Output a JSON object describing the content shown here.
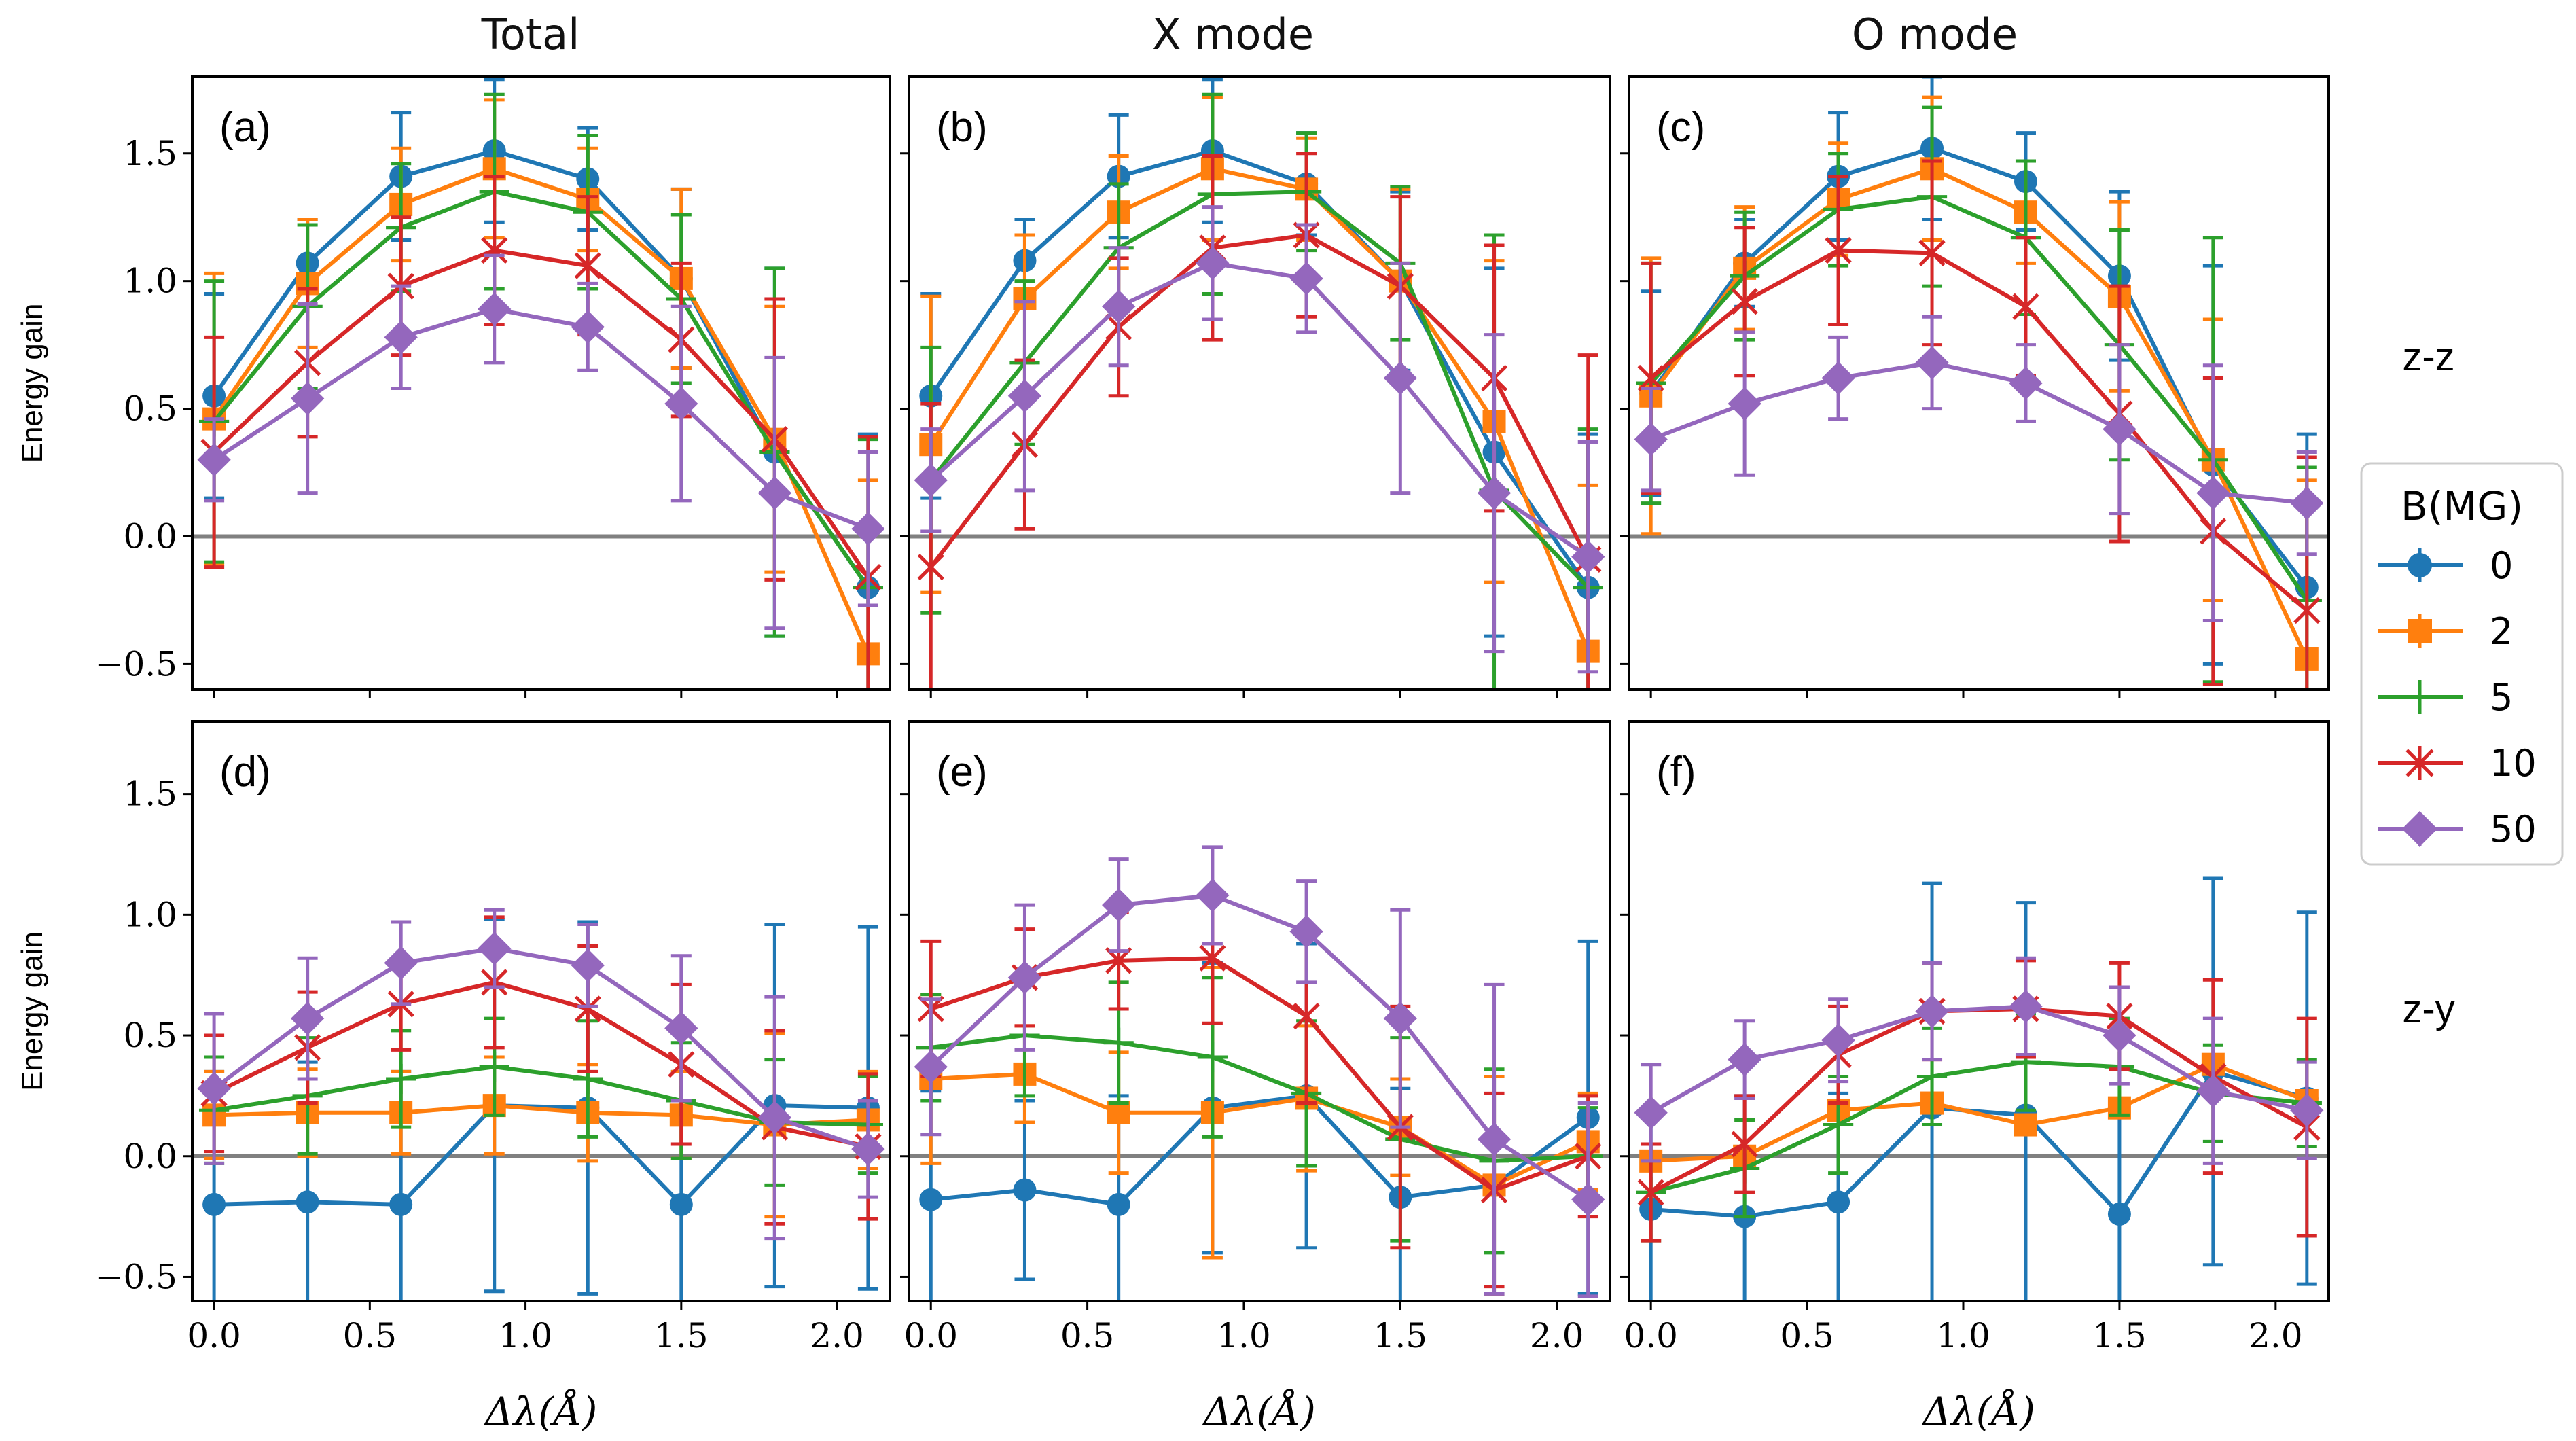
{
  "column_titles": [
    "Total",
    "X mode",
    "O mode"
  ],
  "row_labels": [
    "z-z",
    "z-y"
  ],
  "colors": {
    "B0": "#1f77b4",
    "B2": "#ff7f0e",
    "B5": "#2ca02c",
    "B10": "#d62728",
    "B50": "#9467bd",
    "zero_line": "#808080"
  },
  "legend": {
    "title": "B(MG)",
    "entries": [
      {
        "label": "0",
        "marker": "circle",
        "color": "#1f77b4"
      },
      {
        "label": "2",
        "marker": "square",
        "color": "#ff7f0e"
      },
      {
        "label": "5",
        "marker": "plus",
        "color": "#2ca02c"
      },
      {
        "label": "10",
        "marker": "x",
        "color": "#d62728"
      },
      {
        "label": "50",
        "marker": "diamond",
        "color": "#9467bd"
      }
    ]
  },
  "chart_data": [
    {
      "panel": "(a)",
      "type": "line",
      "title": "Total",
      "xlabel": "Δλ(Å)",
      "ylabel": "Energy gain",
      "xlim": [
        -0.07,
        2.17
      ],
      "ylim": [
        -0.6,
        1.8
      ],
      "x": [
        0.0,
        0.3,
        0.6,
        0.9,
        1.2,
        1.5,
        1.8,
        2.1
      ],
      "series": [
        {
          "name": "0",
          "values": [
            0.55,
            1.07,
            1.41,
            1.51,
            1.4,
            1.01,
            0.33,
            -0.2
          ],
          "errors": [
            0.4,
            0.17,
            0.25,
            0.28,
            0.2,
            0.35,
            0.72,
            0.6
          ]
        },
        {
          "name": "2",
          "values": [
            0.46,
            0.99,
            1.3,
            1.44,
            1.32,
            1.01,
            0.38,
            -0.46
          ],
          "errors": [
            0.57,
            0.25,
            0.22,
            0.27,
            0.2,
            0.35,
            0.52,
            0.68
          ]
        },
        {
          "name": "5",
          "values": [
            0.45,
            0.9,
            1.21,
            1.35,
            1.27,
            0.93,
            0.33,
            -0.2
          ],
          "errors": [
            0.55,
            0.32,
            0.25,
            0.38,
            0.3,
            0.33,
            0.72,
            0.58
          ]
        },
        {
          "name": "10",
          "values": [
            0.33,
            0.68,
            0.98,
            1.12,
            1.06,
            0.77,
            0.38,
            -0.16
          ],
          "errors": [
            0.45,
            0.29,
            0.27,
            0.29,
            0.27,
            0.3,
            0.55,
            0.55
          ]
        },
        {
          "name": "50",
          "values": [
            0.3,
            0.54,
            0.78,
            0.89,
            0.82,
            0.52,
            0.17,
            0.03
          ],
          "errors": [
            0.16,
            0.37,
            0.2,
            0.21,
            0.17,
            0.38,
            0.53,
            0.3
          ]
        }
      ]
    },
    {
      "panel": "(b)",
      "type": "line",
      "title": "X mode",
      "xlabel": "Δλ(Å)",
      "ylabel": "",
      "xlim": [
        -0.07,
        2.17
      ],
      "ylim": [
        -0.6,
        1.8
      ],
      "x": [
        0.0,
        0.3,
        0.6,
        0.9,
        1.2,
        1.5,
        1.8,
        2.1
      ],
      "series": [
        {
          "name": "0",
          "values": [
            0.55,
            1.08,
            1.41,
            1.51,
            1.38,
            1.0,
            0.33,
            -0.2
          ],
          "errors": [
            0.4,
            0.16,
            0.24,
            0.28,
            0.2,
            0.35,
            0.72,
            0.6
          ]
        },
        {
          "name": "2",
          "values": [
            0.36,
            0.93,
            1.27,
            1.44,
            1.36,
            1.0,
            0.45,
            -0.45
          ],
          "errors": [
            0.58,
            0.25,
            0.22,
            0.28,
            0.2,
            0.36,
            0.63,
            0.65
          ]
        },
        {
          "name": "5",
          "values": [
            0.22,
            0.68,
            1.13,
            1.34,
            1.35,
            1.07,
            0.18,
            -0.2
          ],
          "errors": [
            0.52,
            0.32,
            0.25,
            0.39,
            0.23,
            0.3,
            1.0,
            0.62
          ]
        },
        {
          "name": "10",
          "values": [
            -0.12,
            0.36,
            0.82,
            1.13,
            1.18,
            0.98,
            0.62,
            -0.09
          ],
          "errors": [
            0.64,
            0.33,
            0.27,
            0.36,
            0.32,
            0.35,
            0.52,
            0.8
          ]
        },
        {
          "name": "50",
          "values": [
            0.22,
            0.55,
            0.9,
            1.07,
            1.01,
            0.62,
            0.17,
            -0.08
          ],
          "errors": [
            0.2,
            0.37,
            0.23,
            0.22,
            0.21,
            0.45,
            0.62,
            0.45
          ]
        }
      ]
    },
    {
      "panel": "(c)",
      "type": "line",
      "title": "O mode",
      "xlabel": "Δλ(Å)",
      "ylabel": "",
      "xlim": [
        -0.07,
        2.17
      ],
      "ylim": [
        -0.6,
        1.8
      ],
      "x": [
        0.0,
        0.3,
        0.6,
        0.9,
        1.2,
        1.5,
        1.8,
        2.1
      ],
      "series": [
        {
          "name": "0",
          "values": [
            0.56,
            1.07,
            1.41,
            1.52,
            1.39,
            1.02,
            0.28,
            -0.2
          ],
          "errors": [
            0.4,
            0.17,
            0.25,
            0.28,
            0.19,
            0.33,
            0.78,
            0.6
          ]
        },
        {
          "name": "2",
          "values": [
            0.55,
            1.05,
            1.32,
            1.44,
            1.27,
            0.94,
            0.3,
            -0.48
          ],
          "errors": [
            0.54,
            0.24,
            0.22,
            0.28,
            0.2,
            0.37,
            0.55,
            0.7
          ]
        },
        {
          "name": "5",
          "values": [
            0.6,
            1.02,
            1.28,
            1.33,
            1.17,
            0.75,
            0.3,
            -0.25
          ],
          "errors": [
            0.47,
            0.25,
            0.22,
            0.35,
            0.3,
            0.45,
            0.87,
            0.52
          ]
        },
        {
          "name": "10",
          "values": [
            0.62,
            0.92,
            1.12,
            1.11,
            0.9,
            0.48,
            0.02,
            -0.29
          ],
          "errors": [
            0.45,
            0.29,
            0.29,
            0.36,
            0.27,
            0.5,
            0.6,
            0.6
          ]
        },
        {
          "name": "50",
          "values": [
            0.38,
            0.52,
            0.62,
            0.68,
            0.6,
            0.42,
            0.17,
            0.13
          ],
          "errors": [
            0.2,
            0.28,
            0.16,
            0.18,
            0.15,
            0.33,
            0.5,
            0.2
          ]
        }
      ]
    },
    {
      "panel": "(d)",
      "type": "line",
      "title": "",
      "xlabel": "Δλ(Å)",
      "ylabel": "Energy gain",
      "xlim": [
        -0.07,
        2.17
      ],
      "ylim": [
        -0.6,
        1.8
      ],
      "x": [
        0.0,
        0.3,
        0.6,
        0.9,
        1.2,
        1.5,
        1.8,
        2.1
      ],
      "series": [
        {
          "name": "0",
          "values": [
            -0.2,
            -0.19,
            -0.2,
            0.21,
            0.2,
            -0.2,
            0.21,
            0.2
          ],
          "errors": [
            0.55,
            0.58,
            0.55,
            0.77,
            0.77,
            0.55,
            0.75,
            0.75
          ]
        },
        {
          "name": "2",
          "values": [
            0.17,
            0.18,
            0.18,
            0.21,
            0.18,
            0.17,
            0.13,
            0.15
          ],
          "errors": [
            0.18,
            0.18,
            0.17,
            0.2,
            0.2,
            0.18,
            0.38,
            0.2
          ]
        },
        {
          "name": "5",
          "values": [
            0.19,
            0.25,
            0.32,
            0.37,
            0.32,
            0.23,
            0.14,
            0.13
          ],
          "errors": [
            0.22,
            0.24,
            0.2,
            0.2,
            0.24,
            0.24,
            0.26,
            0.2
          ]
        },
        {
          "name": "10",
          "values": [
            0.26,
            0.45,
            0.63,
            0.72,
            0.61,
            0.38,
            0.12,
            0.04
          ],
          "errors": [
            0.24,
            0.23,
            0.19,
            0.27,
            0.26,
            0.33,
            0.4,
            0.3
          ]
        },
        {
          "name": "50",
          "values": [
            0.28,
            0.57,
            0.8,
            0.86,
            0.79,
            0.53,
            0.16,
            0.03
          ],
          "errors": [
            0.31,
            0.25,
            0.17,
            0.16,
            0.17,
            0.3,
            0.5,
            0.2
          ]
        }
      ]
    },
    {
      "panel": "(e)",
      "type": "line",
      "title": "",
      "xlabel": "Δλ(Å)",
      "ylabel": "",
      "xlim": [
        -0.07,
        2.17
      ],
      "ylim": [
        -0.6,
        1.8
      ],
      "x": [
        0.0,
        0.3,
        0.6,
        0.9,
        1.2,
        1.5,
        1.8,
        2.1
      ],
      "series": [
        {
          "name": "0",
          "values": [
            -0.18,
            -0.14,
            -0.2,
            0.2,
            0.25,
            -0.17,
            -0.12,
            0.16
          ],
          "errors": [
            0.45,
            0.37,
            0.45,
            0.6,
            0.63,
            0.45,
            0.45,
            0.73
          ]
        },
        {
          "name": "2",
          "values": [
            0.32,
            0.34,
            0.18,
            0.18,
            0.24,
            0.12,
            -0.12,
            0.06
          ],
          "errors": [
            0.35,
            0.2,
            0.25,
            0.6,
            0.3,
            0.2,
            0.45,
            0.2
          ]
        },
        {
          "name": "5",
          "values": [
            0.45,
            0.5,
            0.47,
            0.41,
            0.26,
            0.07,
            -0.02,
            0.0
          ],
          "errors": [
            0.22,
            0.25,
            0.25,
            0.33,
            0.3,
            0.42,
            0.38,
            0.2
          ]
        },
        {
          "name": "10",
          "values": [
            0.61,
            0.74,
            0.81,
            0.82,
            0.58,
            0.12,
            -0.14,
            0.0
          ],
          "errors": [
            0.28,
            0.2,
            0.2,
            0.27,
            0.36,
            0.5,
            0.4,
            0.25
          ]
        },
        {
          "name": "50",
          "values": [
            0.37,
            0.74,
            1.04,
            1.08,
            0.93,
            0.57,
            0.07,
            -0.18
          ],
          "errors": [
            0.28,
            0.3,
            0.19,
            0.2,
            0.21,
            0.45,
            0.64,
            0.4
          ]
        }
      ]
    },
    {
      "panel": "(f)",
      "type": "line",
      "title": "",
      "xlabel": "Δλ(Å)",
      "ylabel": "",
      "xlim": [
        -0.07,
        2.17
      ],
      "ylim": [
        -0.6,
        1.8
      ],
      "x": [
        0.0,
        0.3,
        0.6,
        0.9,
        1.2,
        1.5,
        1.8,
        2.1
      ],
      "series": [
        {
          "name": "0",
          "values": [
            -0.22,
            -0.25,
            -0.19,
            0.2,
            0.17,
            -0.24,
            0.35,
            0.24
          ],
          "errors": [
            0.4,
            0.5,
            0.45,
            0.93,
            0.88,
            0.45,
            0.8,
            0.77
          ]
        },
        {
          "name": "2",
          "values": [
            -0.02,
            0.0,
            0.19,
            0.22,
            0.13,
            0.2,
            0.38,
            0.23
          ]
        },
        {
          "name": "5",
          "values": [
            -0.15,
            -0.05,
            0.13,
            0.33,
            0.39,
            0.37,
            0.26,
            0.22
          ],
          "errors": [
            0.2,
            0.2,
            0.2,
            0.2,
            0.2,
            0.2,
            0.2,
            0.18
          ]
        },
        {
          "name": "10",
          "values": [
            -0.15,
            0.05,
            0.42,
            0.6,
            0.61,
            0.58,
            0.33,
            0.12
          ],
          "errors": [
            0.2,
            0.2,
            0.2,
            0.2,
            0.2,
            0.22,
            0.4,
            0.45
          ]
        },
        {
          "name": "50",
          "values": [
            0.18,
            0.4,
            0.48,
            0.6,
            0.62,
            0.5,
            0.27,
            0.19
          ],
          "errors": [
            0.2,
            0.16,
            0.17,
            0.2,
            0.2,
            0.2,
            0.3,
            0.2
          ]
        }
      ]
    }
  ]
}
